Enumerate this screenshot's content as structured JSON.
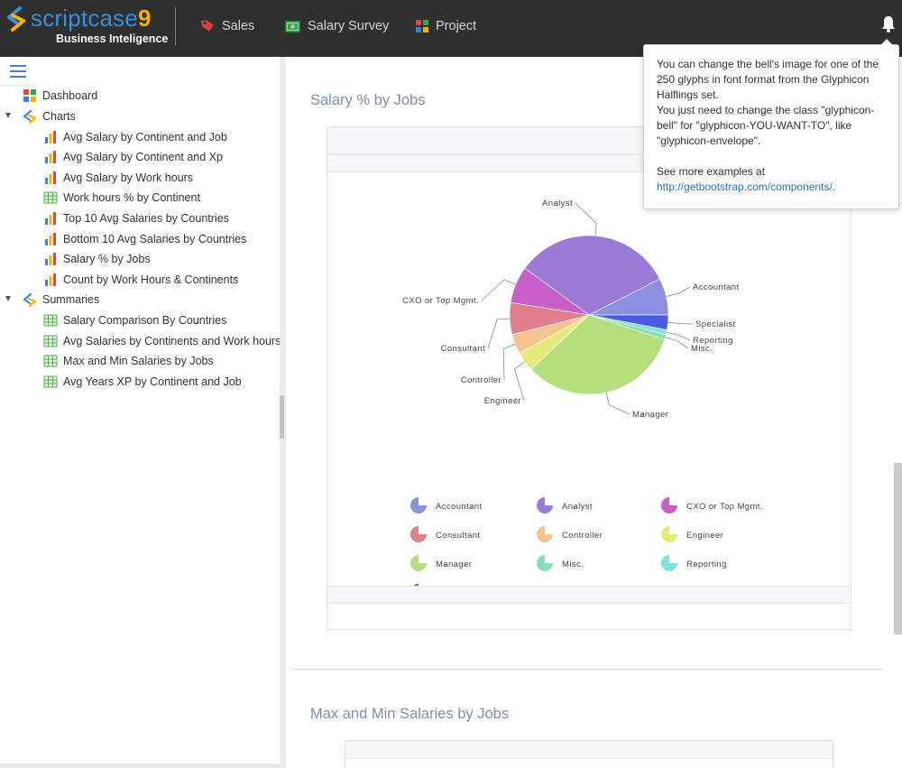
{
  "header": {
    "logo_name": "scriptcase",
    "logo_version": "9",
    "logo_subtitle": "Business Inteligence",
    "menu": [
      {
        "label": "Sales",
        "icon": "tag-icon"
      },
      {
        "label": "Salary Survey",
        "icon": "money-icon"
      },
      {
        "label": "Project",
        "icon": "grid-icon"
      }
    ],
    "bell_icon": "bell-icon"
  },
  "popover": {
    "line1": "You can change the bell's image for one of the 250 glyphs in font format from the Glyphicon Halflings set.",
    "line2": "You just need to change the class \"glyphicon-bell\" for \"glyphicon-YOU-WANT-TO\", like \"glyphicon-envelope\".",
    "line3": "See more examples at",
    "link": "http://getbootstrap.com/components/."
  },
  "sidebar": {
    "items": [
      {
        "label": "Dashboard",
        "icon": "dashboard-icon",
        "level": 0
      },
      {
        "label": "Charts",
        "icon": "folder-icon",
        "level": 0,
        "expanded": true
      },
      {
        "label": "Avg Salary by Continent and Job",
        "icon": "bar-chart-icon",
        "level": 1
      },
      {
        "label": "Avg Salary by Continent and Xp",
        "icon": "bar-chart-icon",
        "level": 1
      },
      {
        "label": "Avg Salary by Work hours",
        "icon": "bar-chart-icon",
        "level": 1
      },
      {
        "label": "Work hours % by Continent",
        "icon": "table-icon",
        "level": 1
      },
      {
        "label": "Top 10 Avg Salaries by Countries",
        "icon": "bar-chart-icon",
        "level": 1
      },
      {
        "label": "Bottom 10 Avg Salaries by Countries",
        "icon": "bar-chart-icon",
        "level": 1
      },
      {
        "label": "Salary % by Jobs",
        "icon": "bar-chart-icon",
        "level": 1
      },
      {
        "label": "Count by Work Hours & Continents",
        "icon": "bar-chart-icon",
        "level": 1
      },
      {
        "label": "Summaries",
        "icon": "folder-icon",
        "level": 0,
        "expanded": true
      },
      {
        "label": "Salary Comparison By Countries",
        "icon": "table-icon",
        "level": 1
      },
      {
        "label": "Avg Salaries by Continents and Work hours",
        "icon": "table-icon",
        "level": 1
      },
      {
        "label": "Max and Min Salaries by Jobs",
        "icon": "table-icon",
        "level": 1
      },
      {
        "label": "Avg Years XP by Continent and Job",
        "icon": "table-icon",
        "level": 1
      }
    ]
  },
  "main": {
    "section1_title": "Salary % by Jobs",
    "section2_title": "Max and Min Salaries by Jobs"
  },
  "chart_data": {
    "type": "pie",
    "categories": [
      "Accountant",
      "Analyst",
      "CXO or Top Mgmt.",
      "Consultant",
      "Controller",
      "Engineer",
      "Manager",
      "Misc.",
      "Reporting",
      "Specialist"
    ],
    "values": [
      7.5,
      32.5,
      7.5,
      6.5,
      4.0,
      4.0,
      33.0,
      1.0,
      1.0,
      3.0
    ],
    "colors": [
      "#8a8fde",
      "#9b7bd5",
      "#c860c9",
      "#e07e8e",
      "#f6c58f",
      "#e6ea7b",
      "#b3e07c",
      "#86dfb2",
      "#80e1e4",
      "#4a5be0"
    ],
    "legend_position": "bottom"
  }
}
